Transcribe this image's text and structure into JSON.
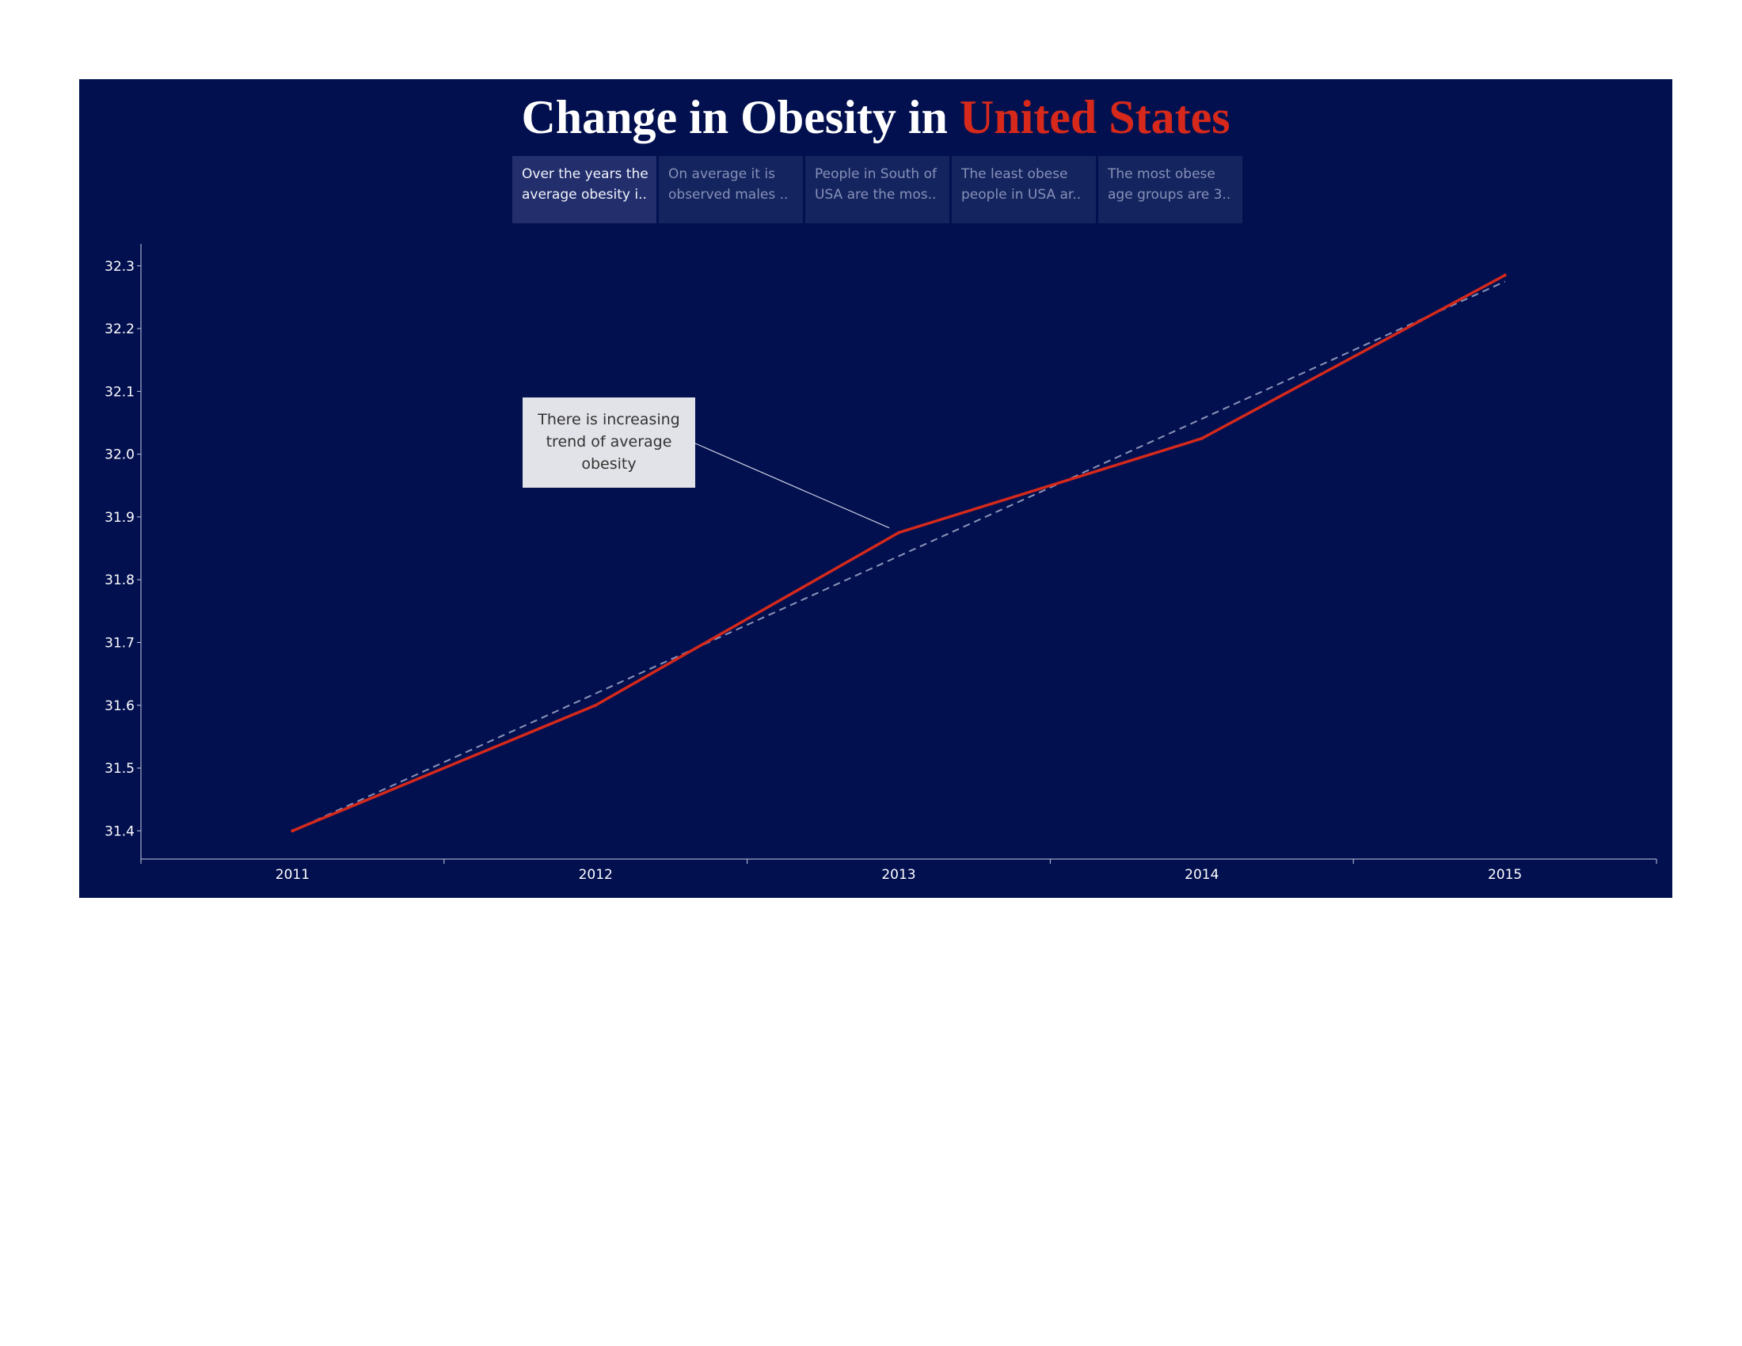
{
  "title": {
    "prefix": "Change in Obesity in ",
    "highlight": "United States"
  },
  "colors": {
    "background": "#02104f",
    "line": "#d6291b",
    "trend": "#8c93b8",
    "axis": "#c7cae0",
    "highlight": "#d6291b"
  },
  "story_tabs": [
    {
      "line1": "Over the years the",
      "line2": "average obesity i..",
      "active": true
    },
    {
      "line1": "On average it is",
      "line2": "observed males ..",
      "active": false
    },
    {
      "line1": "People in South of",
      "line2": "USA are the mos..",
      "active": false
    },
    {
      "line1": "The least obese",
      "line2": "people in USA ar..",
      "active": false
    },
    {
      "line1": "The most obese",
      "line2": "age groups are 3..",
      "active": false
    }
  ],
  "annotation": {
    "line1": "There is increasing",
    "line2": "trend of average",
    "line3": "obesity",
    "points_to_x": 2013
  },
  "chart_data": {
    "type": "line",
    "title": "Change in Obesity in United States",
    "xlabel": "",
    "ylabel": "",
    "x": [
      2011,
      2012,
      2013,
      2014,
      2015
    ],
    "series": [
      {
        "values": [
          31.4,
          31.6,
          31.875,
          32.025,
          32.285
        ]
      }
    ],
    "trend_line": {
      "style": "dashed",
      "x": [
        2011,
        2015
      ],
      "y": [
        31.4,
        32.275
      ]
    },
    "x_ticks": [
      "2011",
      "2012",
      "2013",
      "2014",
      "2015"
    ],
    "y_ticks": [
      "31.4",
      "31.5",
      "31.6",
      "31.7",
      "31.8",
      "31.9",
      "32.0",
      "32.1",
      "32.2",
      "32.3"
    ],
    "ylim": [
      31.355,
      32.335
    ],
    "xlim": [
      2010.5,
      2015.5
    ],
    "grid": false,
    "legend": "none"
  }
}
